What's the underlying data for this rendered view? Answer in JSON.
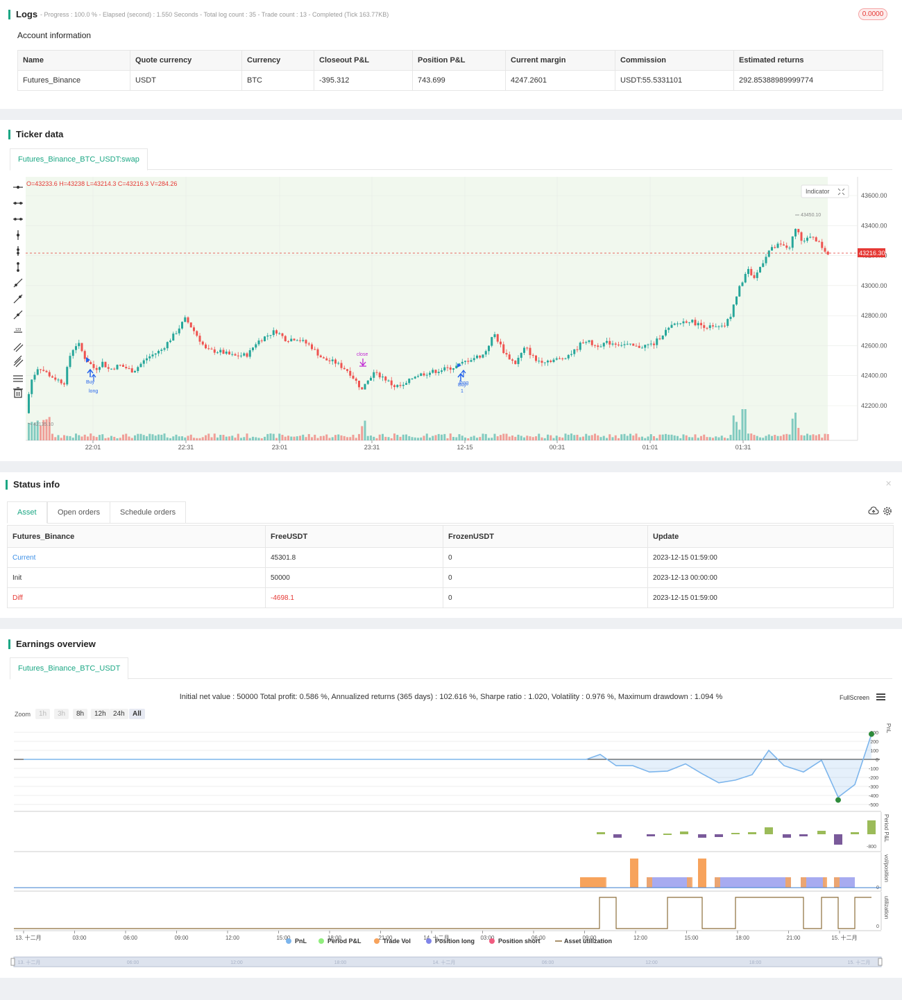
{
  "logs": {
    "title": "Logs",
    "summary": "- Progress : 100.0 % - Elapsed (second) : 1.550  Seconds - Total log count : 35 - Trade count : 13 - Completed (Tick 163.77KB)",
    "badge": "0.0000"
  },
  "account": {
    "title": "Account information",
    "headers": [
      "Name",
      "Quote currency",
      "Currency",
      "Closeout P&L",
      "Position P&L",
      "Current margin",
      "Commission",
      "Estimated returns"
    ],
    "row": [
      "Futures_Binance",
      "USDT",
      "BTC",
      "-395.312",
      "743.699",
      "4247.2601",
      "USDT:55.5331101",
      "292.85388989999774"
    ]
  },
  "ticker": {
    "title": "Ticker data",
    "tab": "Futures_Binance_BTC_USDT:swap",
    "ohlc": "O=43233.6 H=43238 L=43214.3 C=43216.3 V=284.26",
    "indicator_label": "Indicator",
    "last_price": "43216.30",
    "high_marker": "43450.10",
    "low_marker": "42135.10",
    "y_ticks": [
      "43600.00",
      "43400.00",
      "43200.00",
      "43000.00",
      "42800.00",
      "42600.00",
      "42400.00",
      "42200.00"
    ],
    "x_ticks": [
      "22:01",
      "22:31",
      "23:01",
      "23:31",
      "12-15",
      "00:31",
      "01:01",
      "01:31"
    ],
    "annotations": {
      "close": "close",
      "buy": "Buy",
      "long": "long",
      "buy2": "Buy",
      "long2": "long",
      "one": "1"
    }
  },
  "status": {
    "title": "Status info",
    "tabs": [
      "Asset",
      "Open orders",
      "Schedule orders"
    ],
    "headers": [
      "Futures_Binance",
      "FreeUSDT",
      "FrozenUSDT",
      "Update"
    ],
    "rows": [
      [
        "Current",
        "45301.8",
        "0",
        "2023-12-15 01:59:00"
      ],
      [
        "Init",
        "50000",
        "0",
        "2023-12-13 00:00:00"
      ],
      [
        "Diff",
        "-4698.1",
        "0",
        "2023-12-15 01:59:00"
      ]
    ]
  },
  "earnings": {
    "title": "Earnings overview",
    "tab": "Futures_Binance_BTC_USDT",
    "summary": "Initial net value : 50000 Total profit: 0.586 %, Annualized returns (365 days) : 102.616 %, Sharpe ratio : 1.020, Volatility : 0.976 %, Maximum drawdown : 1.094 %",
    "fullscreen": "FullScreen",
    "zoom_label": "Zoom",
    "zoom_buttons": [
      "1h",
      "3h",
      "8h",
      "12h",
      "24h",
      "All"
    ],
    "pnl_ticks": [
      "300",
      "200",
      "100",
      "0",
      "-100",
      "-200",
      "-300",
      "-400",
      "-500"
    ],
    "axis_labels": [
      "PnL",
      "Period P&L",
      "vol/position",
      "utilization"
    ],
    "period_tick": "-800",
    "zero": "0",
    "x_ticks": [
      "13. 十二月",
      "03:00",
      "06:00",
      "09:00",
      "12:00",
      "15:00",
      "18:00",
      "21:00",
      "14. 十二月",
      "03:00",
      "06:00",
      "09:00",
      "12:00",
      "15:00",
      "18:00",
      "21:00",
      "15. 十二月"
    ],
    "nav_ticks": [
      "13. 十二月",
      "06:00",
      "12:00",
      "18:00",
      "14. 十二月",
      "06:00",
      "12:00",
      "18:00",
      "15. 十二月"
    ],
    "legend": [
      {
        "label": "PnL",
        "color": "#7cb5ec"
      },
      {
        "label": "Period P&L",
        "color": "#90ed7d"
      },
      {
        "label": "Trade Vol",
        "color": "#f7a35c"
      },
      {
        "label": "Position long",
        "color": "#8085e9"
      },
      {
        "label": "Position short",
        "color": "#f15c80"
      },
      {
        "label": "Asset utilization",
        "color": "#8d6e3b"
      }
    ]
  },
  "colors": {
    "accent": "#1ba784",
    "up": "#26a69a",
    "down": "#ef5350",
    "red_text": "#e53935",
    "blue_text": "#3a8ee6"
  },
  "icons": [
    "horizontal-line-icon",
    "ray-icon",
    "extended-line-icon",
    "vertical-line-icon",
    "cross-line-icon",
    "vertical-segment-icon",
    "trend-line-icon",
    "trend-ray-icon",
    "trend-extended-icon",
    "price-label-icon",
    "parallel-channel-icon",
    "fib-icon",
    "fib-levels-icon",
    "trash-icon",
    "close-icon",
    "cloud-icon",
    "gear-icon",
    "menu-icon"
  ]
}
